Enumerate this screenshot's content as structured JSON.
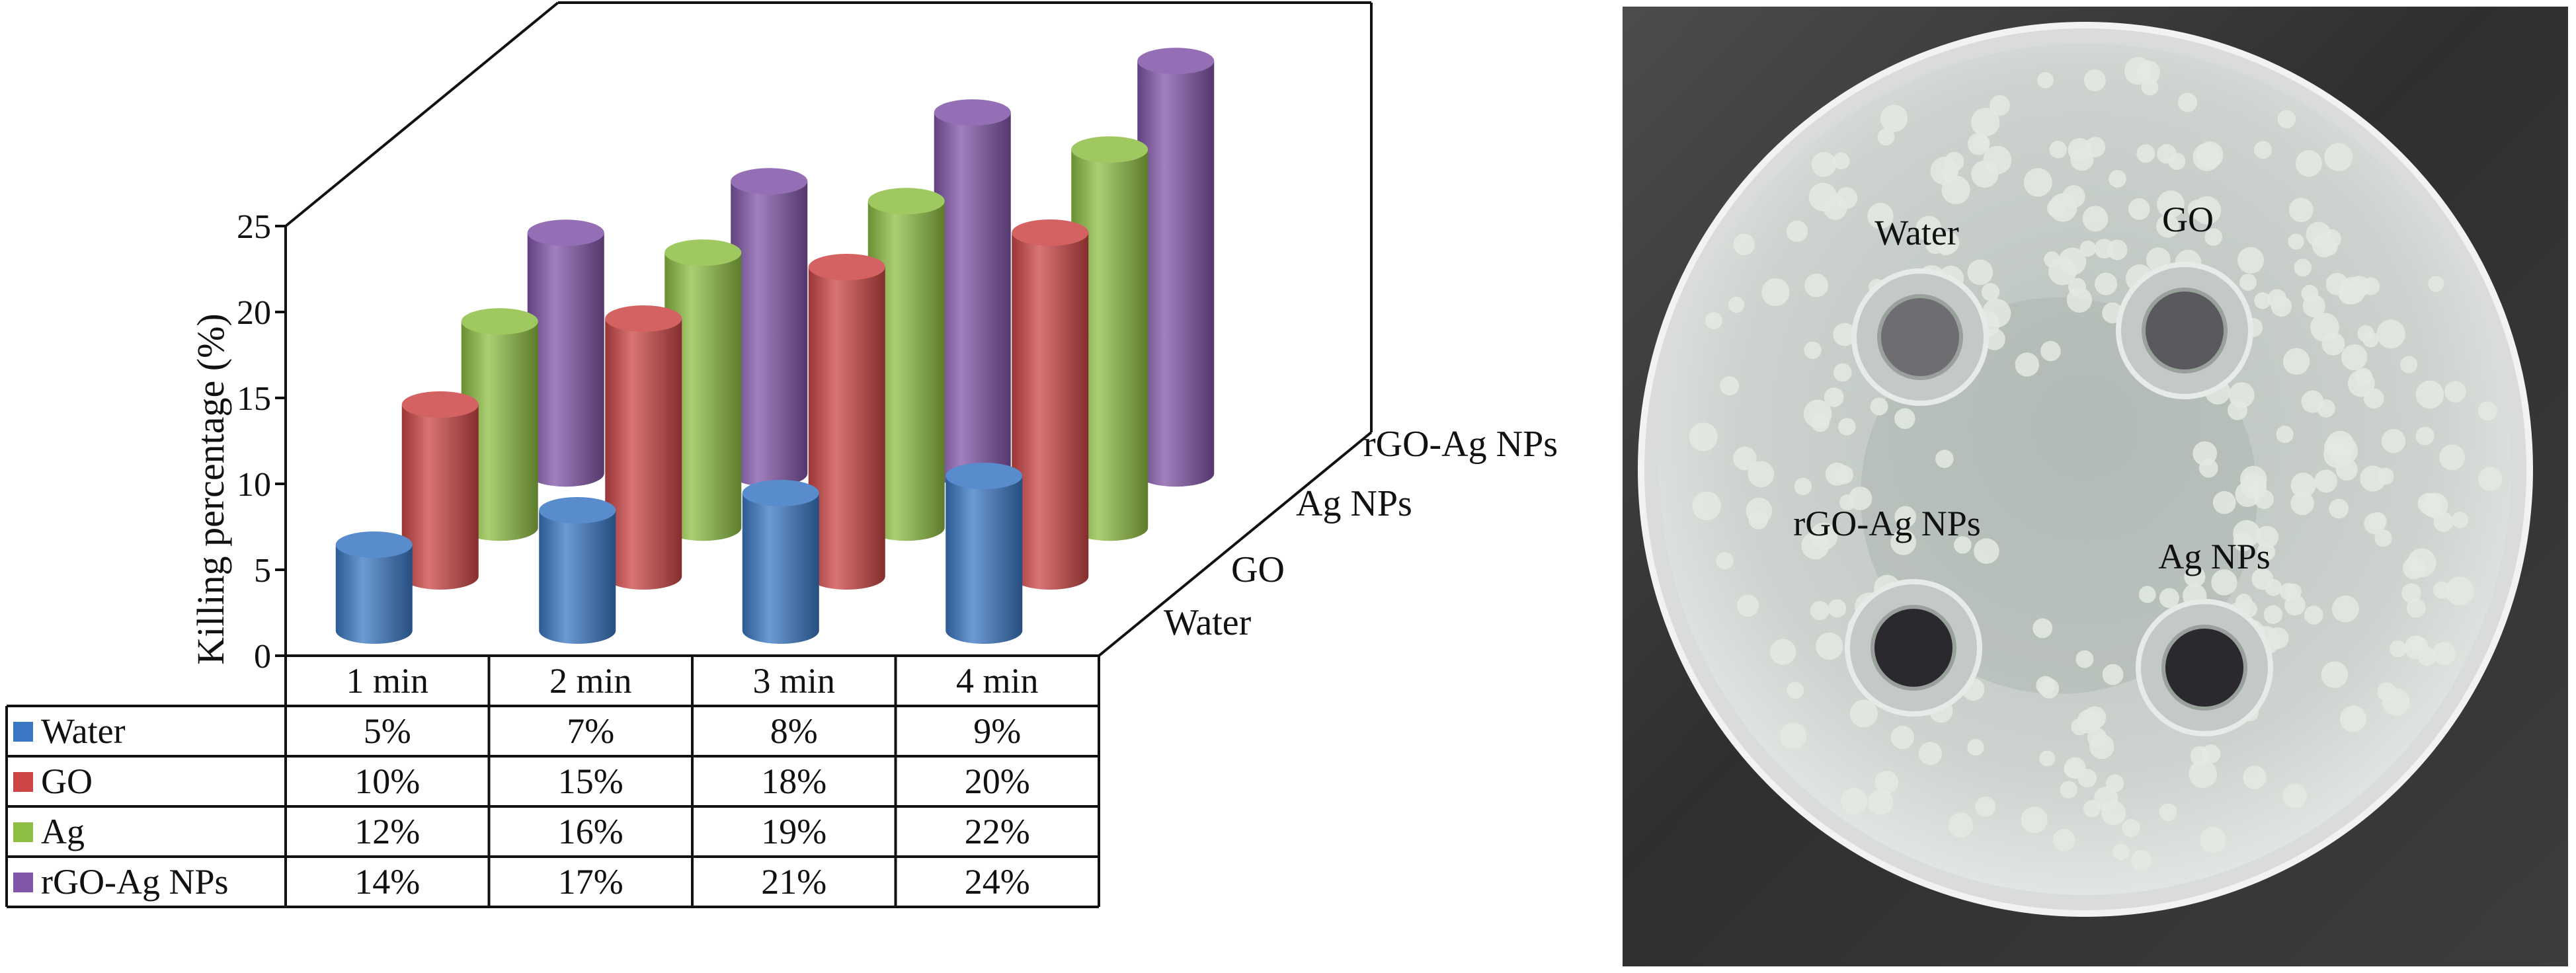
{
  "chart_data": {
    "type": "bar",
    "subtype": "3d-cylinder-with-data-table",
    "ylabel": "Killing percentage (%)",
    "ylim": [
      0,
      25
    ],
    "yticks": [
      0,
      5,
      10,
      15,
      20,
      25
    ],
    "categories": [
      "1 min",
      "2 min",
      "3 min",
      "4 min"
    ],
    "series": [
      {
        "name": "Water",
        "color": "#3a78c4",
        "values": [
          5,
          7,
          8,
          9
        ],
        "table": [
          "5%",
          "7%",
          "8%",
          "9%"
        ]
      },
      {
        "name": "GO",
        "color": "#cc4646",
        "values": [
          10,
          15,
          18,
          20
        ],
        "table": [
          "10%",
          "15%",
          "18%",
          "20%"
        ]
      },
      {
        "name": "Ag",
        "color": "#8fbe44",
        "values": [
          12,
          16,
          19,
          22
        ],
        "table": [
          "12%",
          "16%",
          "19%",
          "22%"
        ]
      },
      {
        "name": "rGO-Ag NPs",
        "color": "#8156a8",
        "values": [
          14,
          17,
          21,
          24
        ],
        "table": [
          "14%",
          "17%",
          "21%",
          "24%"
        ]
      }
    ],
    "depth_labels": [
      "Water",
      "GO",
      "Ag NPs",
      "rGO-Ag NPs"
    ]
  },
  "photo": {
    "labels": [
      "Water",
      "GO",
      "rGO-Ag NPs",
      "Ag NPs"
    ],
    "colors": {
      "background": "#3a3a3a",
      "agar": "#cdd3cf",
      "colony": "#e4e9e3",
      "well_dark": "#2a2a2e"
    }
  }
}
